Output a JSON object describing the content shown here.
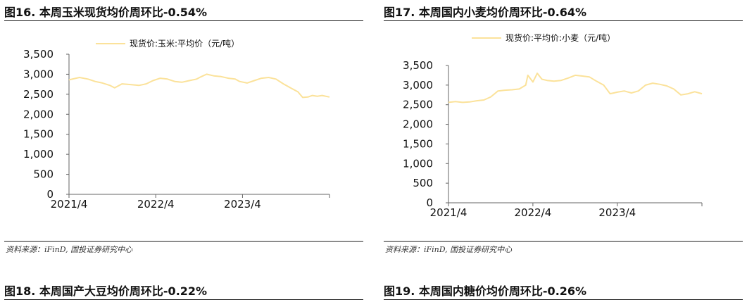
{
  "fig16": {
    "title": "图16. 本周玉米现货均价周环比-0.54%",
    "source": "资料来源：iFinD, 国投证券研究中心"
  },
  "fig17": {
    "title": "图17. 本周国内小麦均价周环比-0.64%",
    "source": "资料来源：iFinD, 国投证券研究中心"
  },
  "fig18": {
    "title": "图18. 本周国产大豆均价周环比-0.22%"
  },
  "fig19": {
    "title": "图19. 本周国内糖价均价周环比-0.26%"
  },
  "colors": {
    "series": "#fbe29a",
    "axis": "#666666"
  },
  "chart_data": [
    {
      "type": "line",
      "legend": "top-center",
      "grid": false,
      "ylim": [
        0,
        3500
      ],
      "yticks": [
        0,
        500,
        1000,
        1500,
        2000,
        2500,
        3000,
        3500
      ],
      "ytick_labels": [
        "0",
        "500",
        "1,000",
        "1,500",
        "2,000",
        "2,500",
        "3,000",
        "3,500"
      ],
      "xlim": [
        "2021-04-01",
        "2024-04-01"
      ],
      "xticks": [
        "2021-04-01",
        "2022-04-01",
        "2023-04-01"
      ],
      "xtick_labels": [
        "2021/4",
        "2022/4",
        "2023/4"
      ],
      "series": [
        {
          "name": "现货价:玉米:平均价（元/吨）",
          "x": [
            "2021-04-01",
            "2021-05-15",
            "2021-06-20",
            "2021-07-20",
            "2021-08-20",
            "2021-09-20",
            "2021-10-10",
            "2021-11-10",
            "2021-12-20",
            "2022-01-20",
            "2022-02-20",
            "2022-03-20",
            "2022-04-20",
            "2022-05-20",
            "2022-06-20",
            "2022-07-20",
            "2022-08-20",
            "2022-09-20",
            "2022-10-10",
            "2022-11-01",
            "2022-12-01",
            "2023-01-01",
            "2023-02-01",
            "2023-03-01",
            "2023-03-20",
            "2023-04-20",
            "2023-05-20",
            "2023-06-20",
            "2023-07-20",
            "2023-08-20",
            "2023-09-20",
            "2023-10-20",
            "2023-11-20",
            "2023-12-10",
            "2024-01-01",
            "2024-01-20",
            "2024-02-10",
            "2024-03-01",
            "2024-04-01"
          ],
          "values": [
            2860,
            2920,
            2880,
            2820,
            2780,
            2720,
            2660,
            2760,
            2740,
            2720,
            2760,
            2840,
            2900,
            2880,
            2820,
            2800,
            2840,
            2880,
            2940,
            3000,
            2960,
            2940,
            2900,
            2880,
            2820,
            2780,
            2840,
            2900,
            2920,
            2880,
            2760,
            2660,
            2560,
            2420,
            2430,
            2470,
            2450,
            2470,
            2430
          ]
        }
      ]
    },
    {
      "type": "line",
      "legend": "top-center",
      "grid": false,
      "ylim": [
        0,
        3500
      ],
      "yticks": [
        0,
        500,
        1000,
        1500,
        2000,
        2500,
        3000,
        3500
      ],
      "ytick_labels": [
        "0",
        "500",
        "1,000",
        "1,500",
        "2,000",
        "2,500",
        "3,000",
        "3,500"
      ],
      "xlim": [
        "2021-04-01",
        "2024-04-01"
      ],
      "xticks": [
        "2021-04-01",
        "2022-04-01",
        "2023-04-01"
      ],
      "xtick_labels": [
        "2021/4",
        "2022/4",
        "2023/4"
      ],
      "series": [
        {
          "name": "现货价:平均价:小麦（元/吨）",
          "x": [
            "2021-04-01",
            "2021-05-01",
            "2021-06-01",
            "2021-07-01",
            "2021-08-01",
            "2021-09-01",
            "2021-10-01",
            "2021-11-01",
            "2021-12-01",
            "2022-01-01",
            "2022-02-01",
            "2022-03-01",
            "2022-03-10",
            "2022-04-01",
            "2022-04-20",
            "2022-05-10",
            "2022-06-01",
            "2022-07-01",
            "2022-08-01",
            "2022-09-01",
            "2022-10-01",
            "2022-11-01",
            "2022-12-01",
            "2023-01-01",
            "2023-02-01",
            "2023-03-01",
            "2023-04-01",
            "2023-05-01",
            "2023-06-01",
            "2023-07-01",
            "2023-08-01",
            "2023-09-01",
            "2023-10-01",
            "2023-11-01",
            "2023-12-01",
            "2024-01-01",
            "2024-02-01",
            "2024-03-01",
            "2024-04-01"
          ],
          "values": [
            2560,
            2580,
            2560,
            2570,
            2600,
            2620,
            2700,
            2850,
            2870,
            2880,
            2900,
            3000,
            3250,
            3080,
            3300,
            3150,
            3120,
            3100,
            3120,
            3180,
            3250,
            3230,
            3210,
            3100,
            3000,
            2780,
            2820,
            2850,
            2800,
            2850,
            3000,
            3050,
            3020,
            2980,
            2900,
            2750,
            2780,
            2830,
            2780
          ]
        }
      ]
    }
  ]
}
